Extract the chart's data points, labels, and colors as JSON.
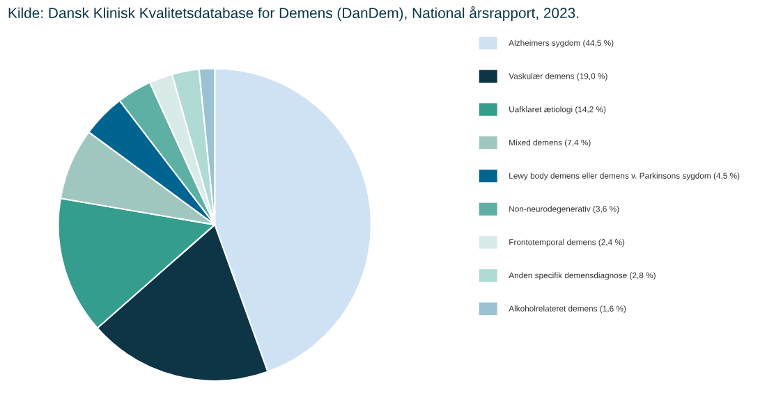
{
  "chart_data": {
    "type": "pie",
    "categories": [
      "Alzheimers sygdom (44,5 %)",
      "Vaskulær demens (19,0 %)",
      "Uafklaret ætiologi (14,2 %)",
      "Mixed demens (7,4 %)",
      "Lewy body demens eller demens v. Parkinsons sygdom (4,5 %)",
      "Non-neurodegenerativ (3,6 %)",
      "Frontotemporal demens (2,4 %)",
      "Anden specifik demensdiagnose (2,8 %)",
      "Alkoholrelateret demens (1,6 %)"
    ],
    "values": [
      44.5,
      19.0,
      14.2,
      7.4,
      4.5,
      3.6,
      2.4,
      2.8,
      1.6
    ],
    "colors": [
      "#cfe2f3",
      "#0d3545",
      "#349d8e",
      "#9fc7c0",
      "#006490",
      "#5eafa4",
      "#d8ebe8",
      "#b0dbd4",
      "#9bc2d3"
    ],
    "legend": "right",
    "annotations": [
      "Kilde: Dansk Klinisk Kvalitetsdatabase for Demens (DanDem), National årsrapport, 2023."
    ]
  }
}
